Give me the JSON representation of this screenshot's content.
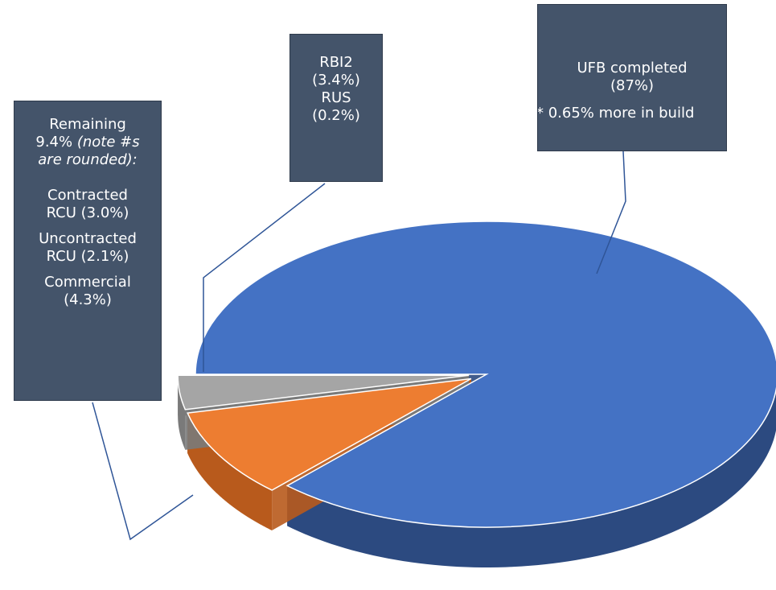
{
  "chart_data": {
    "type": "pie",
    "slices": [
      {
        "name": "UFB completed",
        "value": 87,
        "value_label": "(87%)",
        "note": "* 0.65% more in build",
        "color": "#4472c4",
        "side_color": "#2c4a80"
      },
      {
        "name": "Remaining",
        "value": 9.4,
        "value_label": "9.4%",
        "note": "(note #s are rounded):",
        "color": "#ed7d31",
        "side_color": "#b85a1c",
        "parts": [
          {
            "name": "Contracted RCU",
            "value": 3.0,
            "value_label": "(3.0%)"
          },
          {
            "name": "Uncontracted RCU",
            "value": 2.1,
            "value_label": "(2.1%)"
          },
          {
            "name": "Commercial",
            "value": 4.3,
            "value_label": "(4.3%)"
          }
        ]
      },
      {
        "color": "#a5a5a5",
        "side_color": "#7a7a7a",
        "parts": [
          {
            "name": "RBI2",
            "value": 3.4,
            "value_label": "(3.4%)"
          },
          {
            "name": "RUS",
            "value": 0.2,
            "value_label": "(0.2%)"
          }
        ]
      }
    ]
  }
}
